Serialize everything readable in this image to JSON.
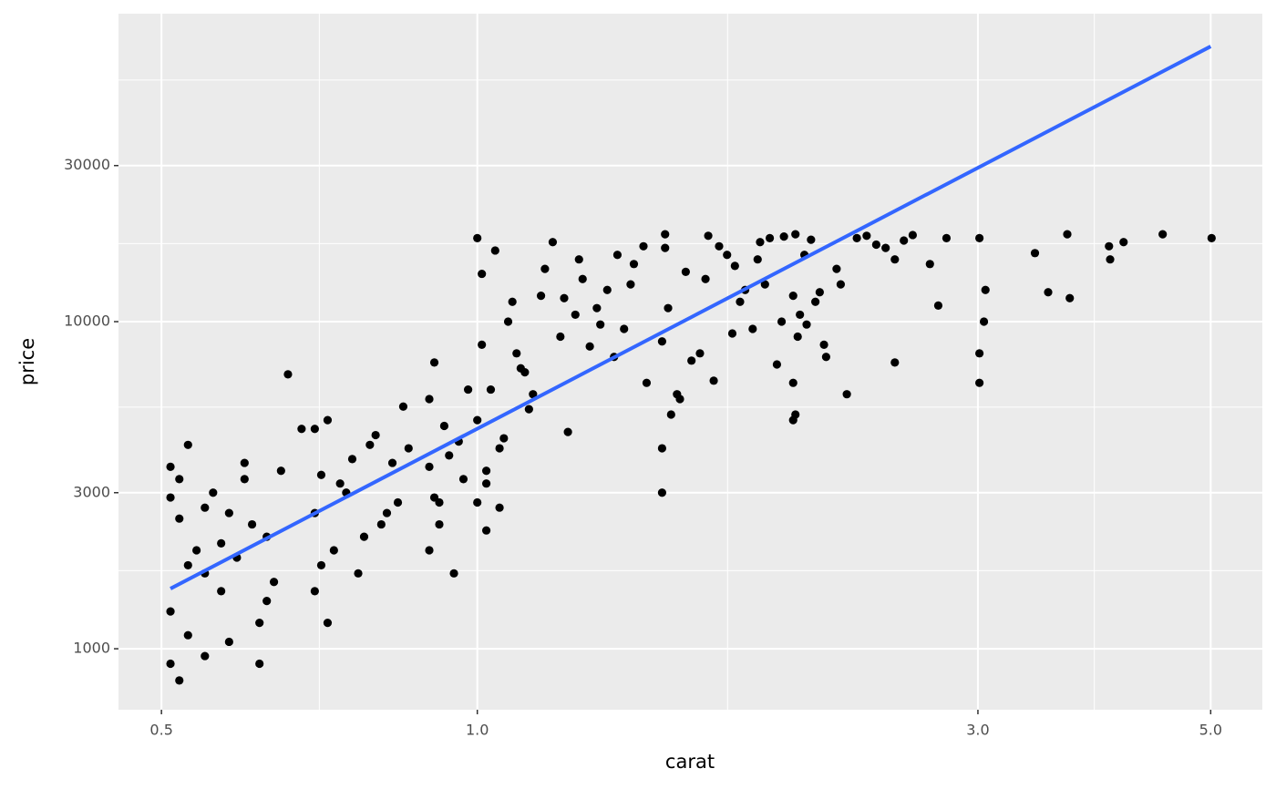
{
  "chart_data": {
    "type": "scatter",
    "x_label": "carat",
    "y_label": "price",
    "log_x": true,
    "log_y": true,
    "grid": true,
    "xlim": [
      0.455,
      5.6
    ],
    "ylim": [
      651,
      87400
    ],
    "xticks": [
      {
        "value": 0.5,
        "label": "0.5"
      },
      {
        "value": 1,
        "label": "1.0"
      },
      {
        "value": 3,
        "label": "3.0"
      },
      {
        "value": 5,
        "label": "5.0"
      }
    ],
    "yticks": [
      1000,
      3000,
      10000,
      30000
    ],
    "x_minor_grid": [
      0.707,
      1.732,
      3.873
    ],
    "y_minor_grid": [
      1732,
      5477,
      17320,
      54772
    ],
    "series": [
      {
        "name": "points",
        "color": "#000000",
        "x": [
          0.51,
          0.51,
          0.52,
          0.52,
          0.53,
          0.53,
          0.54,
          0.55,
          0.56,
          0.57,
          0.58,
          0.6,
          0.62,
          0.63,
          0.65,
          0.66,
          0.52,
          0.55,
          0.58,
          0.61,
          0.64,
          0.68,
          0.51,
          0.53,
          0.57,
          0.6,
          0.63,
          0.51,
          0.55,
          0.59,
          0.62,
          0.7,
          0.7,
          0.71,
          0.72,
          0.73,
          0.75,
          0.77,
          0.79,
          0.81,
          0.83,
          0.85,
          0.7,
          0.72,
          0.74,
          0.78,
          0.8,
          0.84,
          0.71,
          0.76,
          0.82,
          0.86,
          0.9,
          0.9,
          0.91,
          0.92,
          0.93,
          0.95,
          0.97,
          0.9,
          0.92,
          0.96,
          0.98,
          0.91,
          0.94,
          1.0,
          1.0,
          1.01,
          1.01,
          1.02,
          1.03,
          1.05,
          1.07,
          1.1,
          1.12,
          1.15,
          1.2,
          1.22,
          1.25,
          1.3,
          1.35,
          1.4,
          1.45,
          1.0,
          1.02,
          1.04,
          1.06,
          1.09,
          1.13,
          1.18,
          1.24,
          1.28,
          1.33,
          1.38,
          1.05,
          1.08,
          1.16,
          1.26,
          1.36,
          1.44,
          1.02,
          1.11,
          1.21,
          1.31,
          1.41,
          1.5,
          1.5,
          1.51,
          1.52,
          1.55,
          1.6,
          1.65,
          1.7,
          1.75,
          1.8,
          1.85,
          1.9,
          1.95,
          1.5,
          1.53,
          1.58,
          1.63,
          1.68,
          1.73,
          1.78,
          1.83,
          1.88,
          1.93,
          1.51,
          1.56,
          1.66,
          1.76,
          1.86,
          1.96,
          2.0,
          2.0,
          2.01,
          2.02,
          2.05,
          2.1,
          2.15,
          2.2,
          2.3,
          2.4,
          2.5,
          2.6,
          2.0,
          2.03,
          2.08,
          2.14,
          2.22,
          2.35,
          2.45,
          2.55,
          2.01,
          2.06,
          2.12,
          2.25,
          2.5,
          2.7,
          2.75,
          2.8,
          3.01,
          3.01,
          3.01,
          3.04,
          3.05,
          3.4,
          3.5,
          3.65,
          3.67,
          4.0,
          4.01,
          4.13,
          4.5,
          5.01
        ],
        "y": [
          900,
          1300,
          2500,
          3300,
          1100,
          4200,
          2000,
          1700,
          3000,
          1500,
          2600,
          3700,
          1200,
          2200,
          3500,
          6900,
          800,
          950,
          1050,
          2400,
          1600,
          4700,
          2900,
          1800,
          2100,
          3300,
          1400,
          3600,
          2700,
          1900,
          900,
          1500,
          2600,
          3400,
          5000,
          2000,
          3000,
          1700,
          4200,
          2400,
          3700,
          5500,
          4700,
          1200,
          3200,
          2200,
          4500,
          2800,
          1800,
          3800,
          2600,
          4100,
          2000,
          3600,
          7500,
          2800,
          4800,
          1700,
          3300,
          5800,
          2400,
          4300,
          6200,
          2900,
          3900,
          2800,
          5000,
          8500,
          14000,
          3500,
          6200,
          4100,
          10000,
          7200,
          5400,
          12000,
          9000,
          4600,
          15500,
          11000,
          7800,
          13000,
          6500,
          18000,
          3200,
          16500,
          4400,
          8000,
          6000,
          17500,
          10500,
          8400,
          12500,
          9500,
          2700,
          11500,
          14500,
          13500,
          16000,
          17000,
          2300,
          7000,
          11800,
          9800,
          15000,
          4100,
          8700,
          18500,
          11000,
          6000,
          7600,
          13500,
          17000,
          9200,
          12500,
          15500,
          18000,
          10000,
          3000,
          5200,
          14200,
          8000,
          6600,
          16000,
          11500,
          9500,
          13000,
          7400,
          16800,
          5800,
          18300,
          14800,
          17500,
          18200,
          5000,
          12000,
          18500,
          9000,
          16000,
          11500,
          7800,
          14500,
          18000,
          17200,
          15500,
          18400,
          6500,
          10500,
          17800,
          8500,
          13000,
          18300,
          16800,
          17700,
          5200,
          9800,
          12300,
          6000,
          7500,
          15000,
          11200,
          18000,
          18000,
          8000,
          6500,
          10000,
          12500,
          16200,
          12300,
          18500,
          11800,
          17000,
          15500,
          17500,
          18500,
          18000
        ]
      },
      {
        "name": "trend",
        "type": "line",
        "color": "#3366ff",
        "x": [
          0.51,
          5.0
        ],
        "y": [
          1527,
          69400
        ]
      }
    ]
  }
}
